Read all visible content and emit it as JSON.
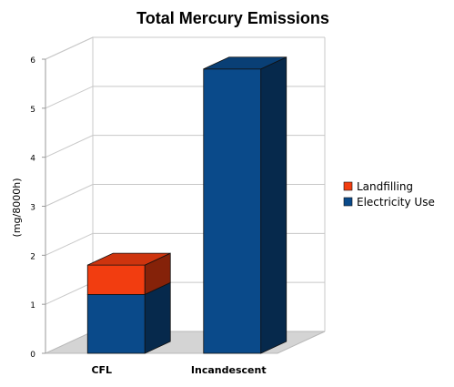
{
  "chart_data": {
    "type": "bar",
    "stacked": true,
    "three_d": true,
    "title": "Total Mercury Emissions",
    "xlabel": "",
    "ylabel": "(mg/8000h)",
    "categories": [
      "CFL",
      "Incandescent"
    ],
    "series": [
      {
        "name": "Electricity Use",
        "values": [
          1.2,
          5.8
        ],
        "color": "#0a4a8a"
      },
      {
        "name": "Landfilling",
        "values": [
          0.6,
          0.0
        ],
        "color": "#f23d10"
      }
    ],
    "ylim": [
      0,
      6
    ],
    "yticks": [
      "0",
      "1",
      "2",
      "3",
      "4",
      "5",
      "6"
    ],
    "grid": true,
    "legend_position": "right"
  }
}
